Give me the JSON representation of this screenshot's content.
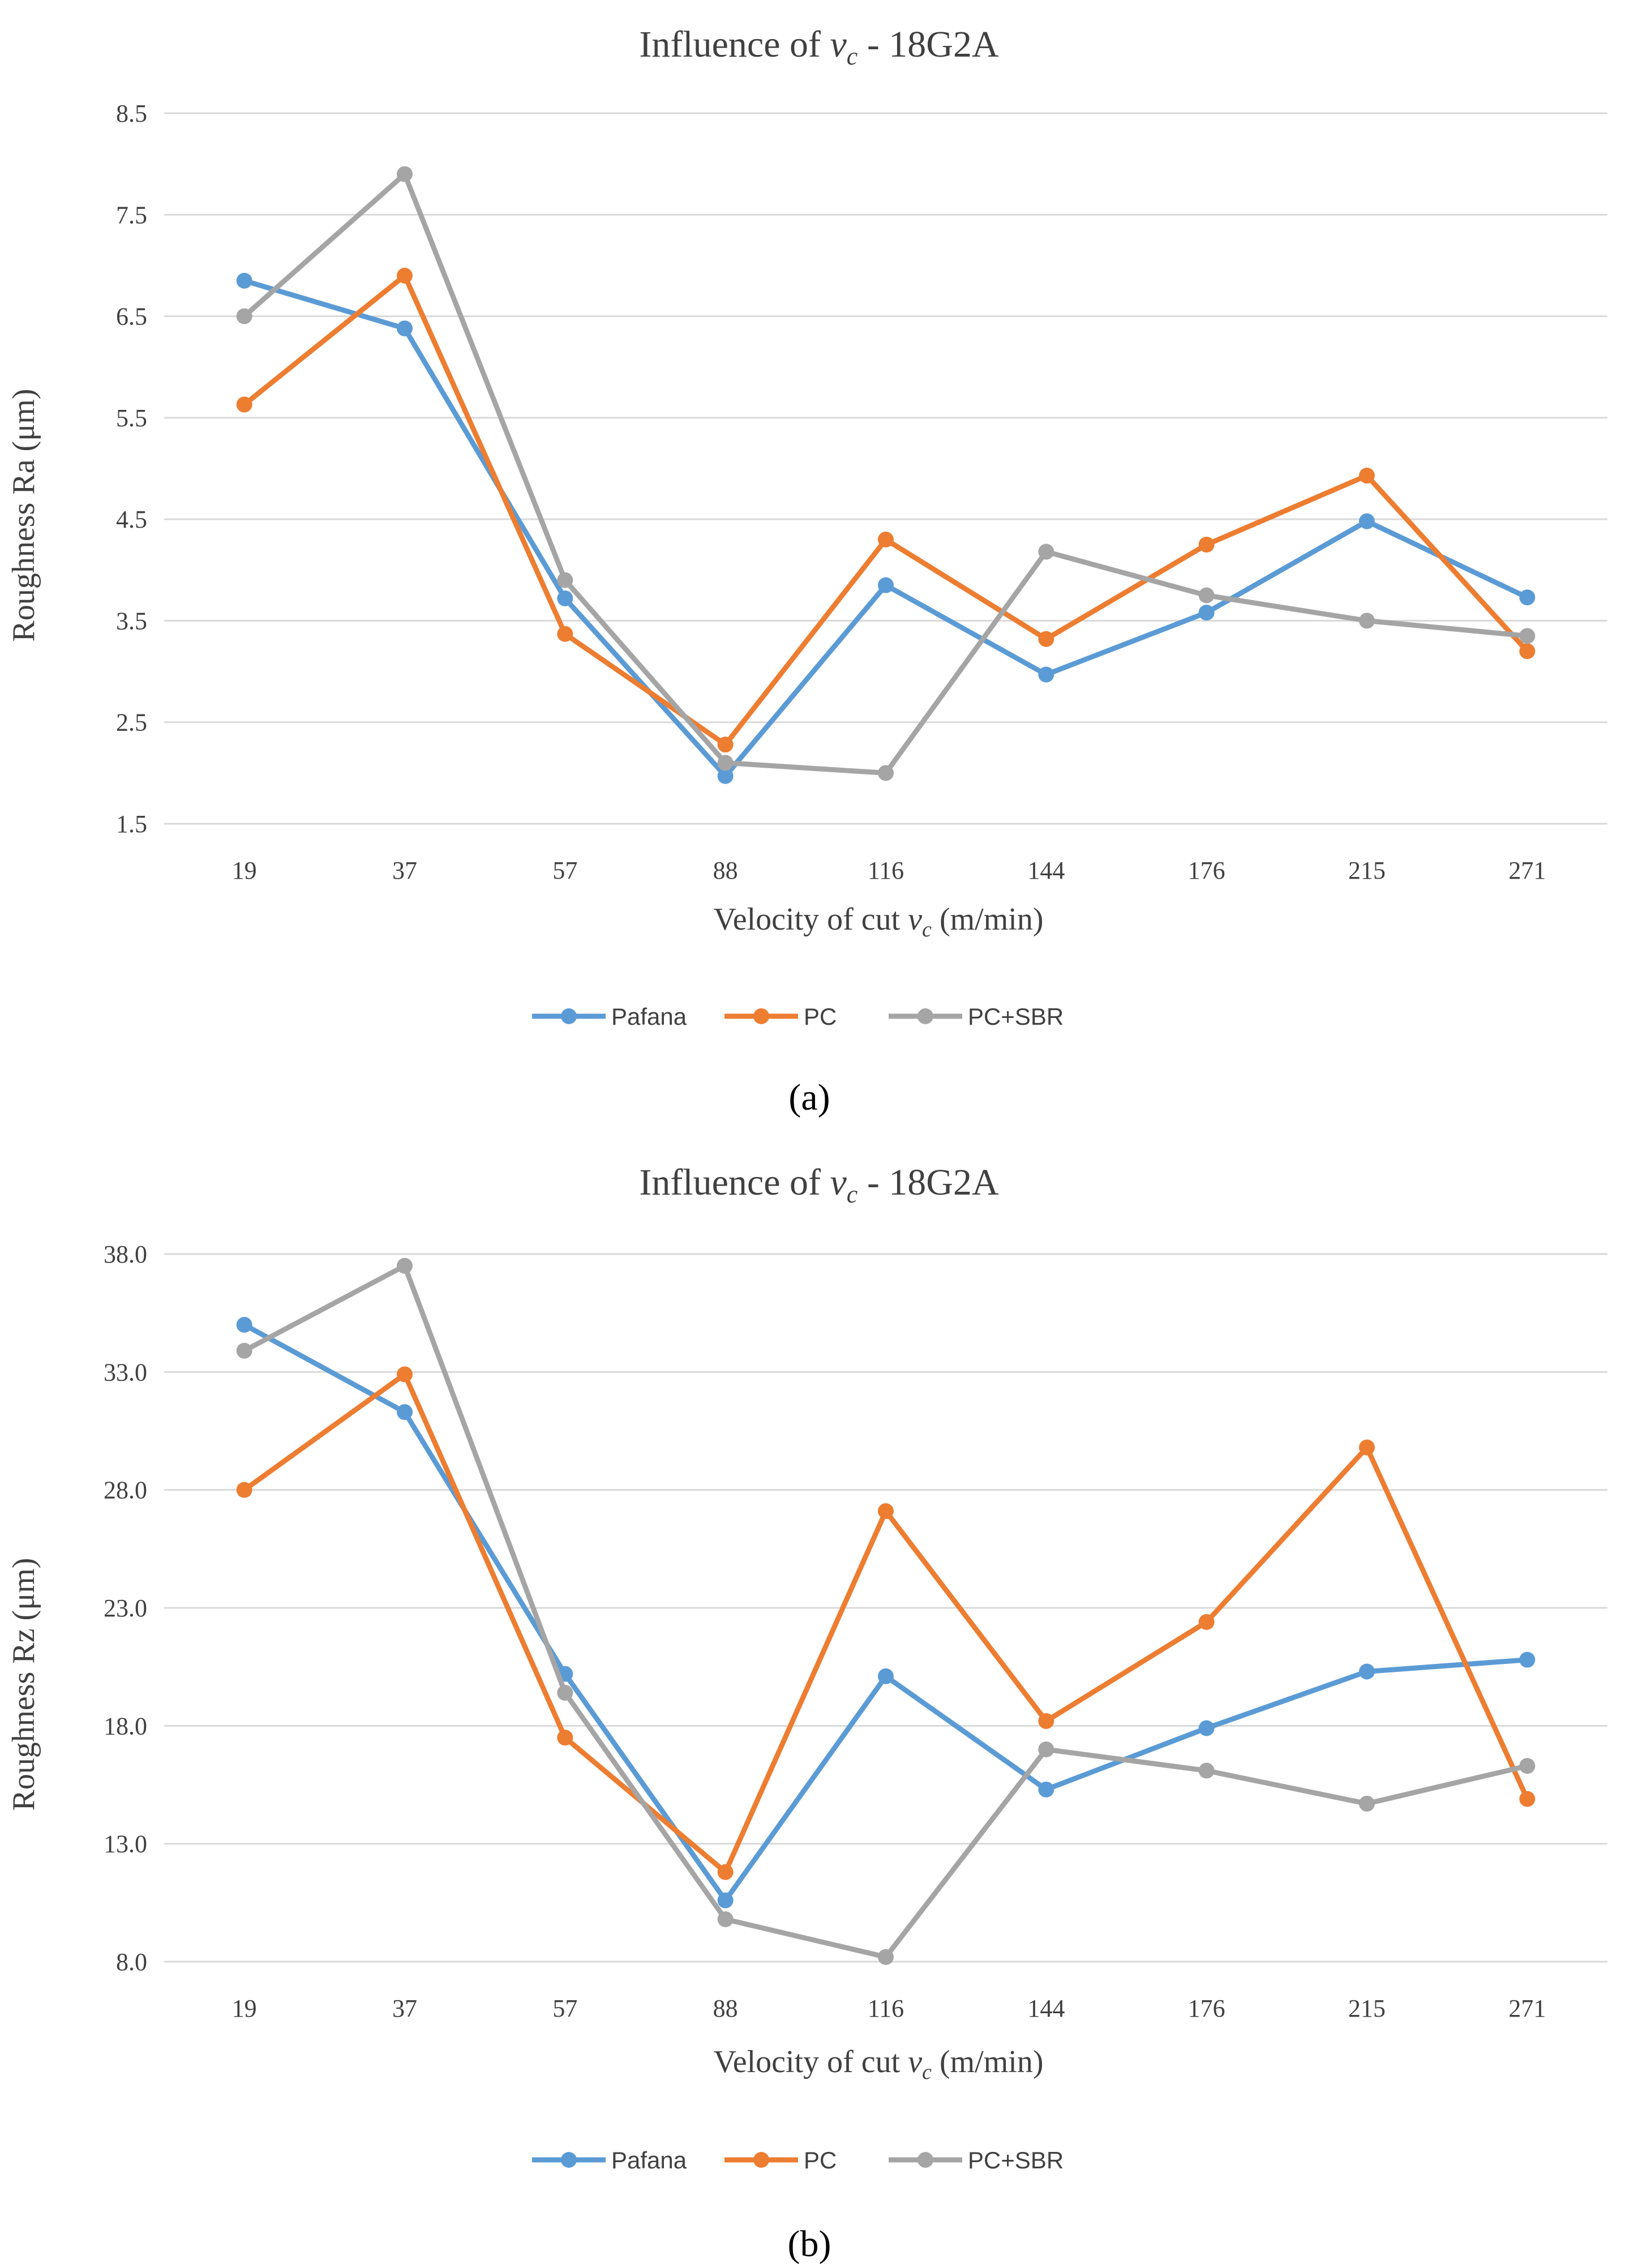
{
  "chart_data": [
    {
      "type": "line",
      "panel": "a",
      "caption": "(a)",
      "title_prefix": "Influence of",
      "title_var": "v",
      "title_sub": "c",
      "title_suffix": " - 18G2A",
      "xlabel_prefix": "Velocity of cut",
      "xlabel_var": "v",
      "xlabel_sub": "c",
      "xlabel_suffix": " (m/min)",
      "ylabel": "Roughness Ra (μm)",
      "categories": [
        "19",
        "37",
        "57",
        "88",
        "116",
        "144",
        "176",
        "215",
        "271"
      ],
      "ylim": [
        1.5,
        8.5
      ],
      "yticks": [
        "1.5",
        "2.5",
        "3.5",
        "4.5",
        "5.5",
        "6.5",
        "7.5",
        "8.5"
      ],
      "grid": true,
      "legend": "bottom",
      "series": [
        {
          "name": "Pafana",
          "color": "#5b9bd5",
          "values": [
            6.85,
            6.38,
            3.72,
            1.97,
            3.85,
            2.97,
            3.58,
            4.48,
            3.73
          ]
        },
        {
          "name": "PC",
          "color": "#ed7d31",
          "values": [
            5.63,
            6.9,
            3.37,
            2.28,
            4.3,
            3.32,
            4.25,
            4.93,
            3.2
          ]
        },
        {
          "name": "PC+SBR",
          "color": "#a5a5a5",
          "values": [
            6.5,
            7.9,
            3.9,
            2.1,
            2.0,
            4.18,
            3.75,
            3.5,
            3.35
          ]
        }
      ]
    },
    {
      "type": "line",
      "panel": "b",
      "caption": "(b)",
      "title_prefix": "Influence of",
      "title_var": "v",
      "title_sub": "c",
      "title_suffix": " - 18G2A",
      "xlabel_prefix": "Velocity of cut",
      "xlabel_var": "v",
      "xlabel_sub": "c",
      "xlabel_suffix": " (m/min)",
      "ylabel": "Roughness Rz (μm)",
      "categories": [
        "19",
        "37",
        "57",
        "88",
        "116",
        "144",
        "176",
        "215",
        "271"
      ],
      "ylim": [
        8.0,
        38.0
      ],
      "yticks": [
        "8.0",
        "13.0",
        "18.0",
        "23.0",
        "28.0",
        "33.0",
        "38.0"
      ],
      "grid": true,
      "legend": "bottom",
      "series": [
        {
          "name": "Pafana",
          "color": "#5b9bd5",
          "values": [
            35.0,
            31.3,
            20.2,
            10.6,
            20.1,
            15.3,
            17.9,
            20.3,
            20.8
          ]
        },
        {
          "name": "PC",
          "color": "#ed7d31",
          "values": [
            28.0,
            32.9,
            17.5,
            11.8,
            27.1,
            18.2,
            22.4,
            29.8,
            14.9
          ]
        },
        {
          "name": "PC+SBR",
          "color": "#a5a5a5",
          "values": [
            33.9,
            37.5,
            19.4,
            9.8,
            8.2,
            17.0,
            16.1,
            14.7,
            16.3
          ]
        }
      ]
    }
  ]
}
